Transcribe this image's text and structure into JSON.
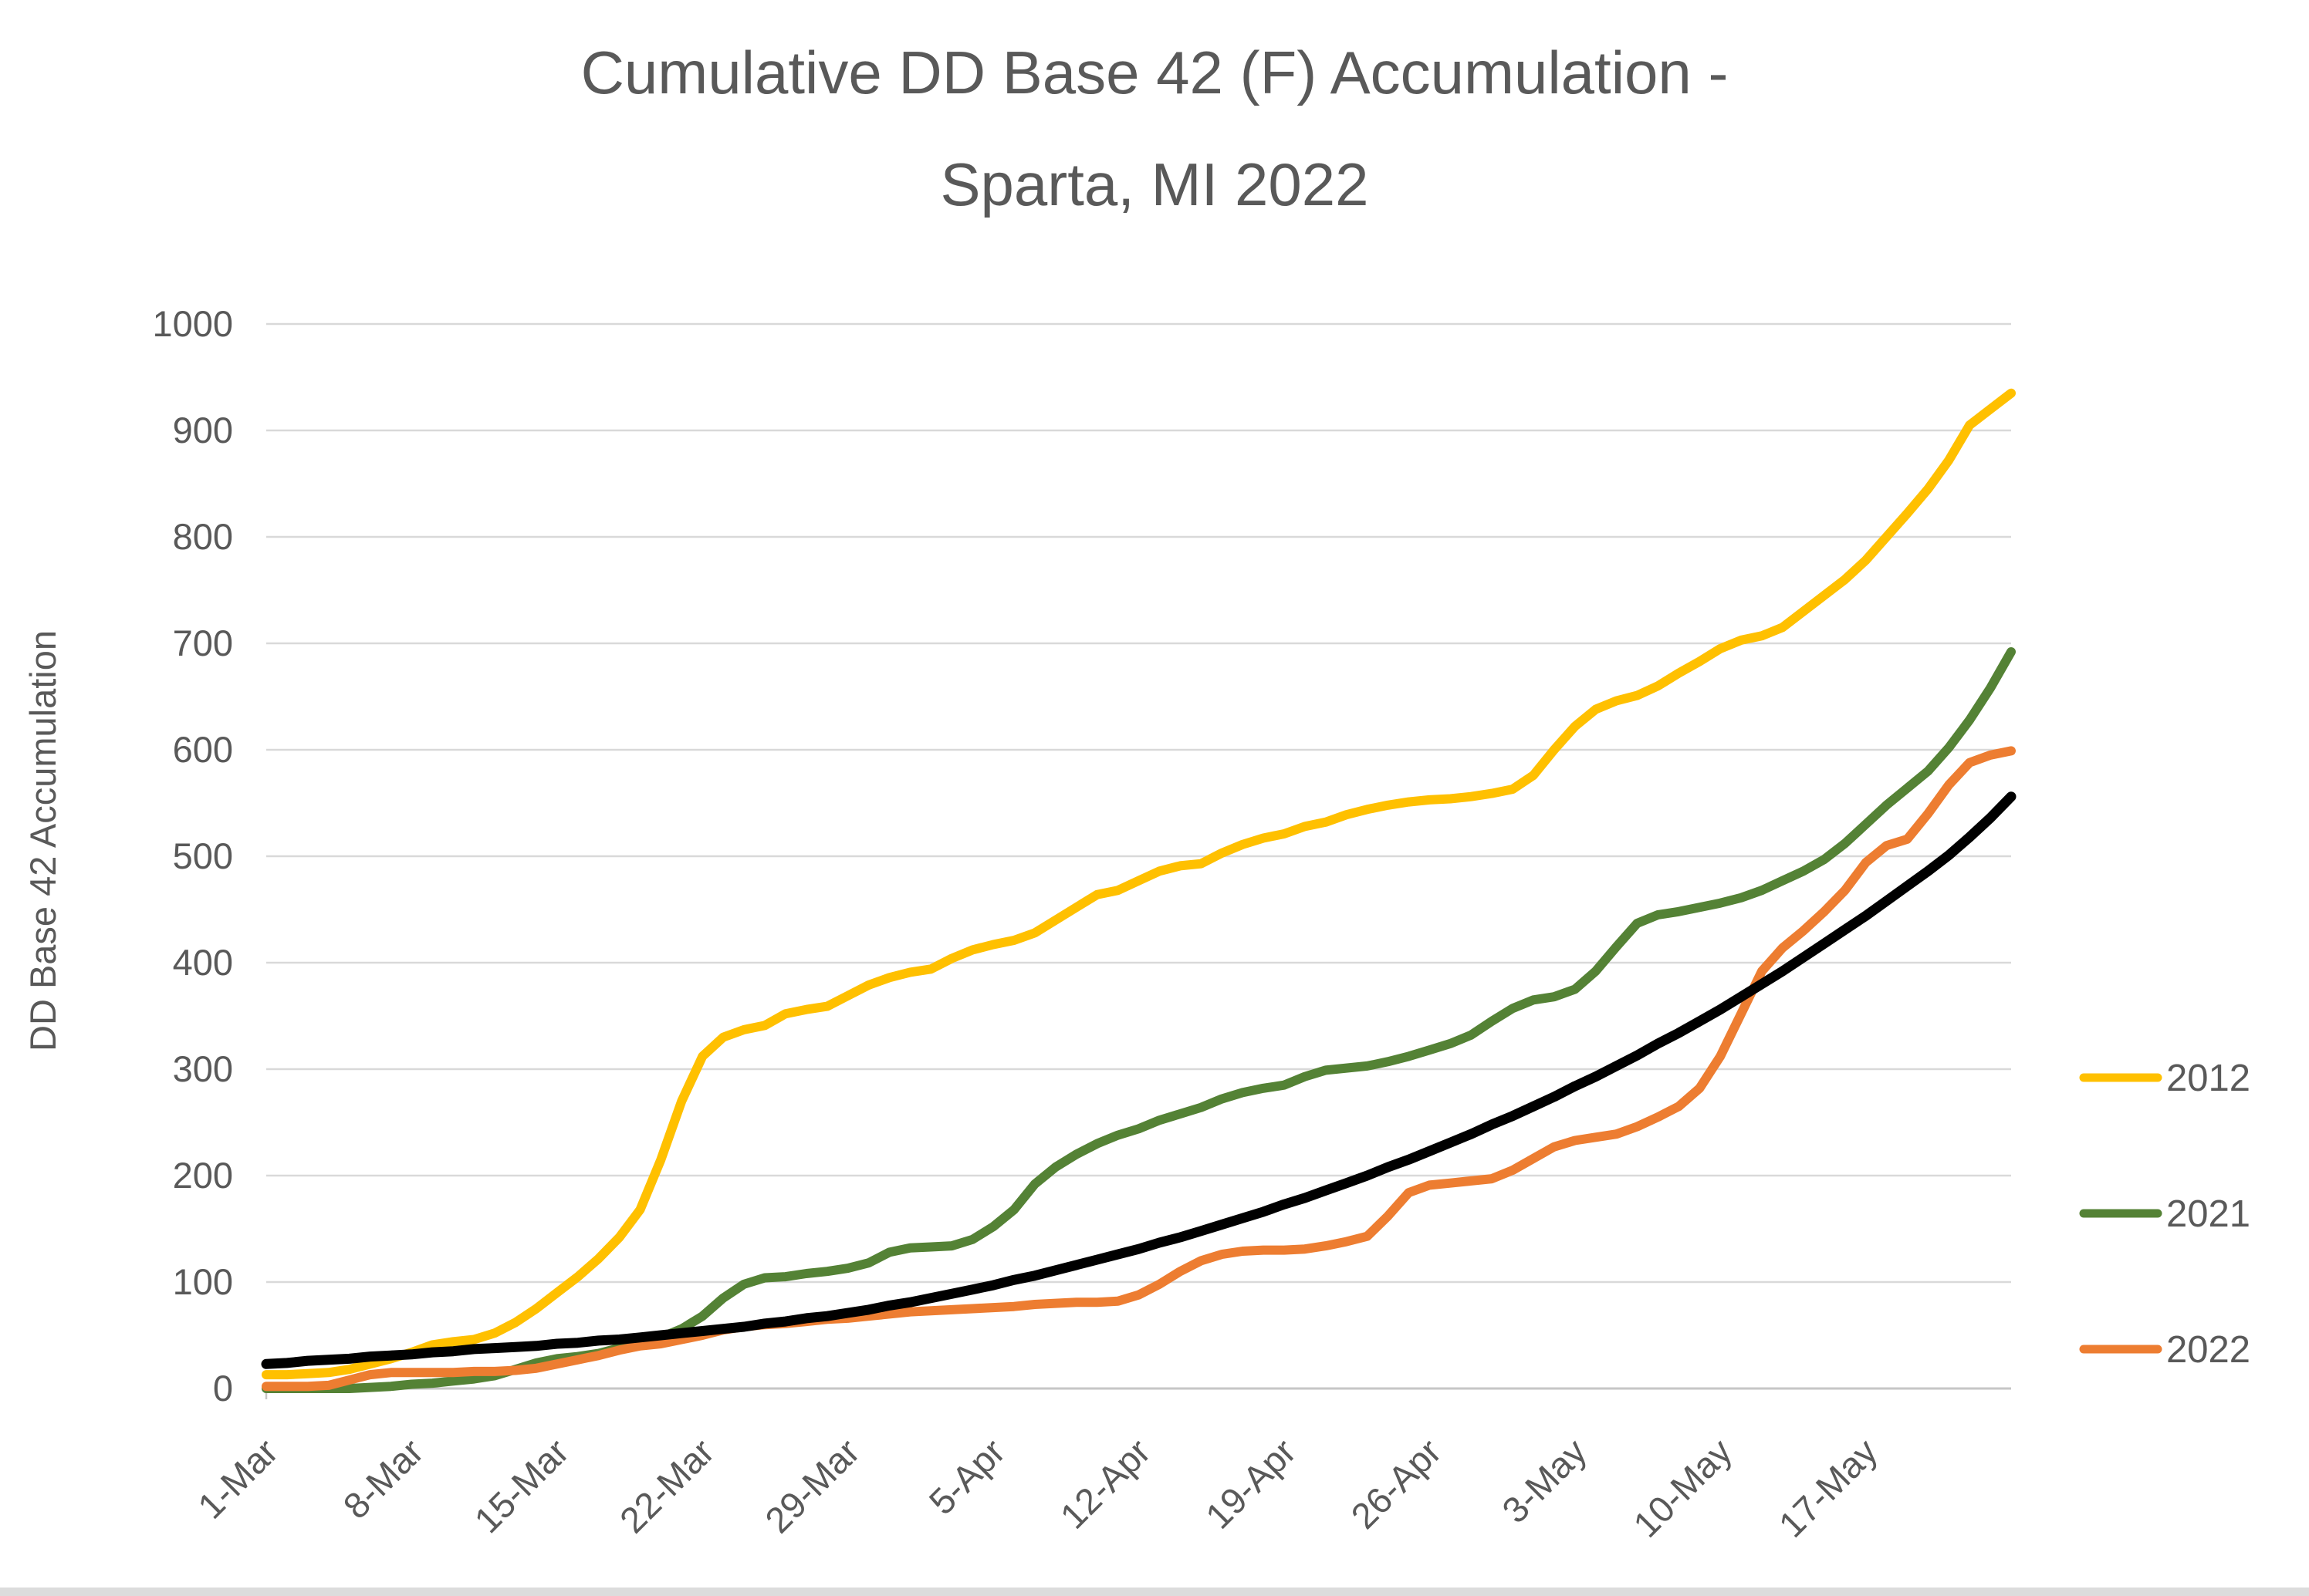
{
  "title": {
    "line1": "Cumulative DD Base 42 (F) Accumulation -",
    "line2": "Sparta, MI 2022"
  },
  "y_axis": {
    "title": "DD Base 42 Accumulation",
    "ticks": [
      0,
      100,
      200,
      300,
      400,
      500,
      600,
      700,
      800,
      900,
      1000
    ]
  },
  "x_axis": {
    "tick_labels": [
      "1-Mar",
      "8-Mar",
      "15-Mar",
      "22-Mar",
      "29-Mar",
      "5-Apr",
      "12-Apr",
      "19-Apr",
      "26-Apr",
      "3-May",
      "10-May",
      "17-May"
    ]
  },
  "legend": [
    {
      "label": "2012",
      "color": "#FFC000"
    },
    {
      "label": "2021",
      "color": "#548235"
    },
    {
      "label": "2022",
      "color": "#ED7D31"
    }
  ],
  "colors": {
    "text": "#595959",
    "gridline": "#D9D9D9",
    "baseline": "#C6C6C6",
    "series_2012": "#FFC000",
    "series_2021": "#548235",
    "series_2022": "#ED7D31",
    "series_black": "#000000"
  },
  "chart_data": {
    "type": "line",
    "title": "Cumulative DD Base 42 (F) Accumulation - Sparta, MI 2022",
    "xlabel": "",
    "ylabel": "DD Base 42 Accumulation",
    "ylim": [
      0,
      1000
    ],
    "grid": "horizontal-only",
    "legend_position": "right",
    "x_unit": "daily points, day 0 = 1-Mar through day 84 = 24-May",
    "n_points": 85,
    "x_tick_interval_days": 7,
    "x_tick_labels": [
      "1-Mar",
      "8-Mar",
      "15-Mar",
      "22-Mar",
      "29-Mar",
      "5-Apr",
      "12-Apr",
      "19-Apr",
      "26-Apr",
      "3-May",
      "10-May",
      "17-May"
    ],
    "series": [
      {
        "name": "2012",
        "color": "#FFC000",
        "in_legend": true,
        "values": [
          13,
          13,
          14,
          15,
          18,
          23,
          28,
          34,
          41,
          44,
          46,
          52,
          62,
          75,
          90,
          105,
          122,
          142,
          168,
          215,
          270,
          312,
          330,
          337,
          341,
          352,
          356,
          359,
          369,
          379,
          386,
          391,
          394,
          404,
          412,
          417,
          421,
          428,
          440,
          452,
          464,
          468,
          477,
          486,
          491,
          493,
          503,
          511,
          517,
          521,
          528,
          532,
          539,
          544,
          548,
          551,
          553,
          554,
          556,
          559,
          563,
          576,
          600,
          622,
          638,
          646,
          651,
          660,
          672,
          683,
          695,
          703,
          707,
          715,
          730,
          745,
          760,
          778,
          800,
          822,
          845,
          872,
          905,
          920,
          935
        ]
      },
      {
        "name": "2021",
        "color": "#548235",
        "in_legend": true,
        "values": [
          0,
          0,
          0,
          0,
          0,
          1,
          2,
          4,
          5,
          7,
          9,
          12,
          18,
          24,
          28,
          30,
          33,
          38,
          43,
          48,
          56,
          68,
          85,
          98,
          104,
          105,
          108,
          110,
          113,
          118,
          128,
          132,
          133,
          134,
          140,
          152,
          168,
          192,
          208,
          220,
          230,
          238,
          244,
          252,
          258,
          264,
          272,
          278,
          282,
          285,
          293,
          299,
          301,
          303,
          307,
          312,
          318,
          324,
          332,
          345,
          357,
          365,
          368,
          375,
          392,
          415,
          437,
          445,
          448,
          452,
          456,
          461,
          468,
          477,
          486,
          497,
          512,
          530,
          548,
          564,
          580,
          602,
          628,
          658,
          692
        ]
      },
      {
        "name": "2022",
        "color": "#ED7D31",
        "in_legend": true,
        "values": [
          2,
          2,
          2,
          3,
          8,
          13,
          15,
          15,
          15,
          15,
          16,
          16,
          17,
          19,
          23,
          27,
          31,
          36,
          40,
          42,
          46,
          50,
          55,
          58,
          60,
          61,
          63,
          65,
          66,
          68,
          70,
          72,
          73,
          74,
          75,
          76,
          77,
          79,
          80,
          81,
          81,
          82,
          88,
          98,
          110,
          120,
          126,
          129,
          130,
          130,
          131,
          134,
          138,
          143,
          162,
          184,
          191,
          193,
          195,
          197,
          205,
          216,
          227,
          233,
          236,
          239,
          246,
          255,
          265,
          282,
          312,
          352,
          392,
          414,
          430,
          448,
          468,
          494,
          510,
          516,
          540,
          567,
          588,
          595,
          599
        ]
      },
      {
        "name": "",
        "color": "#000000",
        "in_legend": false,
        "values": [
          23,
          24,
          26,
          27,
          28,
          30,
          31,
          32,
          34,
          35,
          37,
          38,
          39,
          40,
          42,
          43,
          45,
          46,
          48,
          50,
          52,
          54,
          56,
          58,
          61,
          63,
          66,
          68,
          71,
          74,
          78,
          81,
          85,
          89,
          93,
          97,
          102,
          106,
          111,
          116,
          121,
          126,
          131,
          137,
          142,
          148,
          154,
          160,
          166,
          173,
          179,
          186,
          193,
          200,
          208,
          215,
          223,
          231,
          239,
          248,
          256,
          265,
          274,
          284,
          293,
          303,
          313,
          324,
          334,
          345,
          356,
          368,
          380,
          392,
          405,
          418,
          431,
          444,
          458,
          472,
          486,
          501,
          518,
          536,
          556
        ]
      }
    ]
  }
}
